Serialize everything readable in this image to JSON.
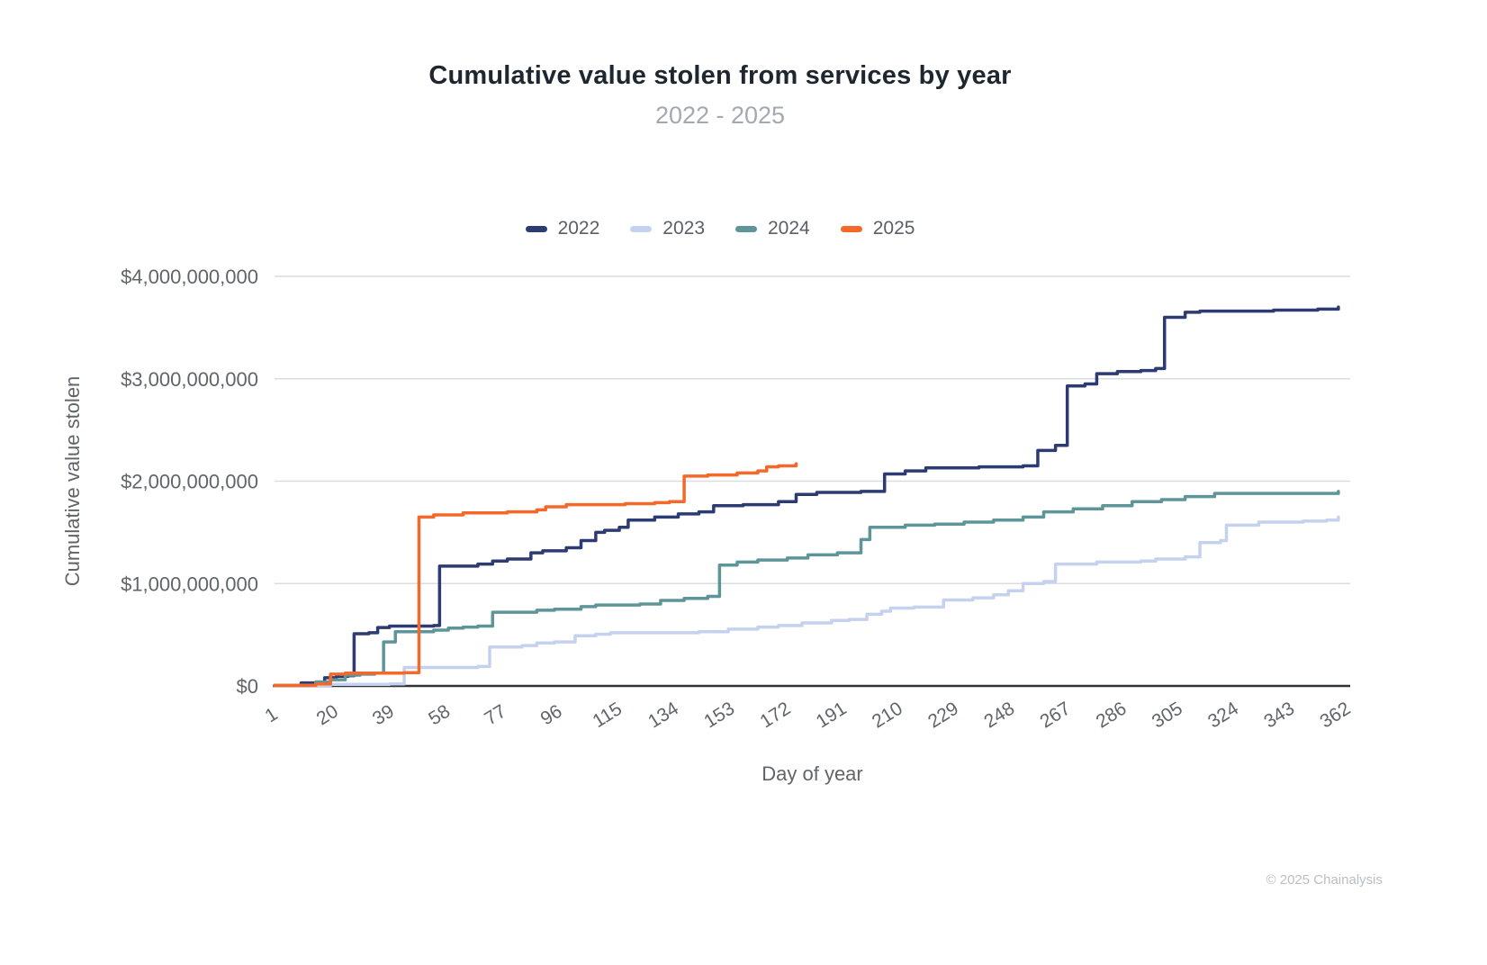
{
  "header": {
    "title": "Cumulative value stolen from services by year",
    "subtitle": "2022 - 2025"
  },
  "footer": {
    "credit": "© 2025 Chainalysis"
  },
  "chart_data": {
    "type": "line",
    "step": true,
    "title": "Cumulative value stolen from services by year",
    "subtitle": "2022 - 2025",
    "xlabel": "Day of year",
    "ylabel": "Cumulative value stolen",
    "xlim": [
      1,
      366
    ],
    "ylim": [
      0,
      4000000000
    ],
    "x_ticks": [
      1,
      20,
      39,
      58,
      77,
      96,
      115,
      134,
      153,
      172,
      191,
      210,
      229,
      248,
      267,
      286,
      305,
      324,
      343,
      362
    ],
    "y_ticks": [
      0,
      1000000000,
      2000000000,
      3000000000,
      4000000000
    ],
    "grid_on": true,
    "legend_position": "top-center",
    "grid_color": "#d9dce1",
    "axis_color": "#2e3338",
    "tick_label_color": "#5f6569",
    "axis_title_color": "#5f6569",
    "series": [
      {
        "name": "2022",
        "color": "#2c3b72",
        "points": [
          [
            1,
            5000000
          ],
          [
            10,
            30000000
          ],
          [
            18,
            80000000
          ],
          [
            22,
            95000000
          ],
          [
            26,
            100000000
          ],
          [
            28,
            510000000
          ],
          [
            33,
            520000000
          ],
          [
            36,
            570000000
          ],
          [
            40,
            585000000
          ],
          [
            55,
            590000000
          ],
          [
            57,
            1170000000
          ],
          [
            70,
            1190000000
          ],
          [
            75,
            1220000000
          ],
          [
            80,
            1240000000
          ],
          [
            88,
            1300000000
          ],
          [
            92,
            1320000000
          ],
          [
            100,
            1350000000
          ],
          [
            105,
            1420000000
          ],
          [
            110,
            1500000000
          ],
          [
            113,
            1520000000
          ],
          [
            118,
            1550000000
          ],
          [
            121,
            1620000000
          ],
          [
            130,
            1650000000
          ],
          [
            138,
            1680000000
          ],
          [
            145,
            1700000000
          ],
          [
            150,
            1760000000
          ],
          [
            160,
            1770000000
          ],
          [
            172,
            1800000000
          ],
          [
            178,
            1870000000
          ],
          [
            185,
            1890000000
          ],
          [
            200,
            1900000000
          ],
          [
            208,
            2070000000
          ],
          [
            215,
            2100000000
          ],
          [
            222,
            2130000000
          ],
          [
            240,
            2140000000
          ],
          [
            255,
            2150000000
          ],
          [
            260,
            2300000000
          ],
          [
            266,
            2350000000
          ],
          [
            270,
            2930000000
          ],
          [
            276,
            2950000000
          ],
          [
            280,
            3050000000
          ],
          [
            287,
            3070000000
          ],
          [
            295,
            3080000000
          ],
          [
            300,
            3100000000
          ],
          [
            303,
            3600000000
          ],
          [
            310,
            3650000000
          ],
          [
            315,
            3660000000
          ],
          [
            340,
            3670000000
          ],
          [
            355,
            3680000000
          ],
          [
            362,
            3700000000
          ]
        ]
      },
      {
        "name": "2023",
        "color": "#c5d2ef",
        "points": [
          [
            1,
            5000000
          ],
          [
            20,
            15000000
          ],
          [
            40,
            20000000
          ],
          [
            45,
            180000000
          ],
          [
            70,
            190000000
          ],
          [
            74,
            380000000
          ],
          [
            85,
            395000000
          ],
          [
            90,
            420000000
          ],
          [
            96,
            430000000
          ],
          [
            103,
            490000000
          ],
          [
            110,
            505000000
          ],
          [
            115,
            520000000
          ],
          [
            145,
            530000000
          ],
          [
            155,
            555000000
          ],
          [
            165,
            575000000
          ],
          [
            172,
            590000000
          ],
          [
            180,
            615000000
          ],
          [
            190,
            640000000
          ],
          [
            196,
            650000000
          ],
          [
            202,
            700000000
          ],
          [
            207,
            730000000
          ],
          [
            210,
            760000000
          ],
          [
            218,
            770000000
          ],
          [
            228,
            840000000
          ],
          [
            238,
            860000000
          ],
          [
            245,
            890000000
          ],
          [
            250,
            930000000
          ],
          [
            255,
            1000000000
          ],
          [
            262,
            1020000000
          ],
          [
            266,
            1190000000
          ],
          [
            280,
            1210000000
          ],
          [
            295,
            1220000000
          ],
          [
            300,
            1240000000
          ],
          [
            310,
            1260000000
          ],
          [
            315,
            1400000000
          ],
          [
            322,
            1420000000
          ],
          [
            324,
            1570000000
          ],
          [
            335,
            1600000000
          ],
          [
            350,
            1610000000
          ],
          [
            358,
            1620000000
          ],
          [
            362,
            1650000000
          ]
        ]
      },
      {
        "name": "2024",
        "color": "#5e9598",
        "points": [
          [
            1,
            5000000
          ],
          [
            15,
            40000000
          ],
          [
            20,
            60000000
          ],
          [
            25,
            105000000
          ],
          [
            30,
            115000000
          ],
          [
            35,
            125000000
          ],
          [
            38,
            430000000
          ],
          [
            42,
            530000000
          ],
          [
            55,
            545000000
          ],
          [
            60,
            565000000
          ],
          [
            65,
            575000000
          ],
          [
            70,
            585000000
          ],
          [
            75,
            720000000
          ],
          [
            90,
            740000000
          ],
          [
            96,
            750000000
          ],
          [
            105,
            775000000
          ],
          [
            110,
            790000000
          ],
          [
            125,
            800000000
          ],
          [
            132,
            835000000
          ],
          [
            140,
            855000000
          ],
          [
            148,
            875000000
          ],
          [
            152,
            1180000000
          ],
          [
            158,
            1210000000
          ],
          [
            165,
            1230000000
          ],
          [
            175,
            1250000000
          ],
          [
            182,
            1280000000
          ],
          [
            192,
            1300000000
          ],
          [
            200,
            1430000000
          ],
          [
            203,
            1550000000
          ],
          [
            215,
            1570000000
          ],
          [
            225,
            1580000000
          ],
          [
            235,
            1600000000
          ],
          [
            245,
            1620000000
          ],
          [
            255,
            1650000000
          ],
          [
            262,
            1700000000
          ],
          [
            272,
            1730000000
          ],
          [
            282,
            1760000000
          ],
          [
            292,
            1800000000
          ],
          [
            302,
            1820000000
          ],
          [
            310,
            1850000000
          ],
          [
            320,
            1880000000
          ],
          [
            340,
            1880000000
          ],
          [
            362,
            1900000000
          ]
        ]
      },
      {
        "name": "2025",
        "color": "#f4692a",
        "points": [
          [
            1,
            5000000
          ],
          [
            15,
            20000000
          ],
          [
            20,
            115000000
          ],
          [
            25,
            125000000
          ],
          [
            45,
            130000000
          ],
          [
            50,
            1650000000
          ],
          [
            55,
            1670000000
          ],
          [
            65,
            1690000000
          ],
          [
            80,
            1700000000
          ],
          [
            90,
            1720000000
          ],
          [
            93,
            1750000000
          ],
          [
            100,
            1770000000
          ],
          [
            120,
            1780000000
          ],
          [
            130,
            1790000000
          ],
          [
            135,
            1800000000
          ],
          [
            140,
            2050000000
          ],
          [
            148,
            2060000000
          ],
          [
            158,
            2080000000
          ],
          [
            165,
            2100000000
          ],
          [
            168,
            2140000000
          ],
          [
            172,
            2150000000
          ],
          [
            178,
            2170000000
          ]
        ]
      }
    ]
  }
}
